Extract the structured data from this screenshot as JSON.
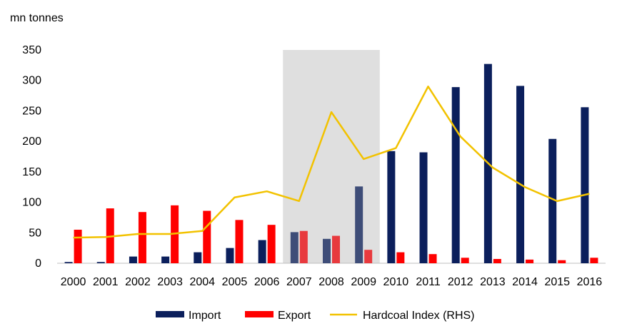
{
  "chart_data": {
    "type": "bar",
    "ylabel": "mn tonnes",
    "ylim": [
      0,
      350
    ],
    "yticks": [
      0,
      50,
      100,
      150,
      200,
      250,
      300,
      350
    ],
    "categories": [
      "2000",
      "2001",
      "2002",
      "2003",
      "2004",
      "2005",
      "2006",
      "2007",
      "2008",
      "2009",
      "2010",
      "2011",
      "2012",
      "2013",
      "2014",
      "2015",
      "2016"
    ],
    "highlight_range": [
      "2007",
      "2009"
    ],
    "series": [
      {
        "name": "Import",
        "type": "bar",
        "color": "#0b1f5c",
        "values": [
          2,
          2,
          11,
          11,
          18,
          25,
          38,
          51,
          40,
          126,
          184,
          182,
          289,
          327,
          291,
          204,
          256
        ]
      },
      {
        "name": "Export",
        "type": "bar",
        "color": "#ff0000",
        "values": [
          55,
          90,
          84,
          95,
          86,
          71,
          63,
          53,
          45,
          22,
          18,
          15,
          9,
          7,
          6,
          5,
          9
        ]
      },
      {
        "name": "Hardcoal Index (RHS)",
        "type": "line",
        "color": "#f2c200",
        "values": [
          42,
          43,
          48,
          48,
          53,
          108,
          118,
          102,
          248,
          171,
          189,
          290,
          208,
          157,
          125,
          102,
          114
        ]
      }
    ],
    "legend_position": "bottom",
    "grid": false
  }
}
